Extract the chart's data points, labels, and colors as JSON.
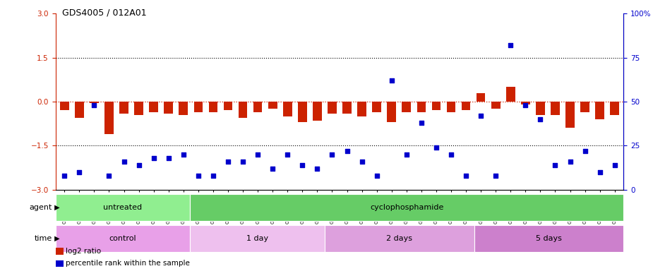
{
  "title": "GDS4005 / 012A01",
  "samples": [
    "GSM677970",
    "GSM677971",
    "GSM677972",
    "GSM677973",
    "GSM677974",
    "GSM677975",
    "GSM677976",
    "GSM677977",
    "GSM677978",
    "GSM677979",
    "GSM677980",
    "GSM677981",
    "GSM677982",
    "GSM677983",
    "GSM677984",
    "GSM677985",
    "GSM677986",
    "GSM677987",
    "GSM677988",
    "GSM677989",
    "GSM677990",
    "GSM677991",
    "GSM677992",
    "GSM677993",
    "GSM677994",
    "GSM677995",
    "GSM677996",
    "GSM677997",
    "GSM677998",
    "GSM677999",
    "GSM678000",
    "GSM678001",
    "GSM678002",
    "GSM678003",
    "GSM678004",
    "GSM678005",
    "GSM678006",
    "GSM678007"
  ],
  "log2_ratio": [
    -0.3,
    -0.55,
    -0.05,
    -1.1,
    -0.4,
    -0.45,
    -0.35,
    -0.4,
    -0.45,
    -0.35,
    -0.35,
    -0.3,
    -0.55,
    -0.35,
    -0.25,
    -0.5,
    -0.7,
    -0.65,
    -0.4,
    -0.4,
    -0.5,
    -0.35,
    -0.7,
    -0.35,
    -0.35,
    -0.3,
    -0.35,
    -0.28,
    0.3,
    -0.25,
    0.5,
    -0.1,
    -0.45,
    -0.45,
    -0.9,
    -0.35,
    -0.6,
    -0.45
  ],
  "percentile": [
    8,
    10,
    48,
    8,
    16,
    14,
    18,
    18,
    20,
    8,
    8,
    16,
    16,
    20,
    12,
    20,
    14,
    12,
    20,
    22,
    16,
    8,
    62,
    20,
    38,
    24,
    20,
    8,
    42,
    8,
    82,
    48,
    40,
    14,
    16,
    22,
    10,
    14
  ],
  "agent_groups": [
    {
      "label": "untreated",
      "start": 0,
      "end": 9,
      "color": "#90EE90"
    },
    {
      "label": "cyclophosphamide",
      "start": 9,
      "end": 38,
      "color": "#66CC66"
    }
  ],
  "time_groups": [
    {
      "label": "control",
      "start": 0,
      "end": 9,
      "color": "#E8A0E8"
    },
    {
      "label": "1 day",
      "start": 9,
      "end": 18,
      "color": "#EEC0EE"
    },
    {
      "label": "2 days",
      "start": 18,
      "end": 28,
      "color": "#DDA0DD"
    },
    {
      "label": "5 days",
      "start": 28,
      "end": 38,
      "color": "#CC80CC"
    }
  ],
  "ylim_left": [
    -3,
    3
  ],
  "ylim_right": [
    0,
    100
  ],
  "bar_color": "#CC2200",
  "dot_color": "#0000CC",
  "left_yticks": [
    -3,
    -1.5,
    0,
    1.5,
    3
  ],
  "right_yticks": [
    0,
    25,
    50,
    75,
    100
  ],
  "legend_items": [
    {
      "label": "log2 ratio",
      "color": "#CC2200"
    },
    {
      "label": "percentile rank within the sample",
      "color": "#0000CC"
    }
  ],
  "bg_color": "#F0F0F0"
}
